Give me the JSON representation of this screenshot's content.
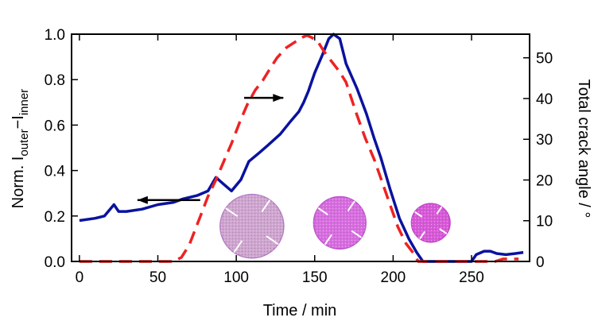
{
  "chart_data": {
    "type": "line",
    "title": "",
    "xlabel": "Time / min",
    "ylabel_left": {
      "text": "Norm. I",
      "sub1": "outer",
      "mid": "−I",
      "sub2": "inner"
    },
    "ylabel_right": "Total crack angle / °",
    "xlim": [
      -5,
      287
    ],
    "ylim_left": [
      0,
      1.0
    ],
    "ylim_right": [
      0,
      55.8
    ],
    "x_ticks": [
      0,
      50,
      100,
      150,
      200,
      250
    ],
    "y_ticks_left": [
      "0.0",
      "0.2",
      "0.4",
      "0.6",
      "0.8",
      "1.0"
    ],
    "y_ticks_right": [
      0,
      10,
      20,
      30,
      40,
      50
    ],
    "grid": false,
    "series": [
      {
        "axis": "left",
        "color": "#0a129e",
        "dash": "solid",
        "points": [
          [
            0,
            0.18
          ],
          [
            10,
            0.19
          ],
          [
            16,
            0.2
          ],
          [
            22,
            0.25
          ],
          [
            25,
            0.22
          ],
          [
            30,
            0.22
          ],
          [
            40,
            0.23
          ],
          [
            50,
            0.25
          ],
          [
            60,
            0.26
          ],
          [
            66,
            0.275
          ],
          [
            75,
            0.29
          ],
          [
            82,
            0.31
          ],
          [
            87,
            0.37
          ],
          [
            92,
            0.34
          ],
          [
            97,
            0.31
          ],
          [
            103,
            0.36
          ],
          [
            108,
            0.44
          ],
          [
            115,
            0.48
          ],
          [
            120,
            0.51
          ],
          [
            128,
            0.56
          ],
          [
            135,
            0.62
          ],
          [
            140,
            0.66
          ],
          [
            143,
            0.7
          ],
          [
            146,
            0.75
          ],
          [
            150,
            0.83
          ],
          [
            155,
            0.91
          ],
          [
            159,
            0.98
          ],
          [
            162,
            1.0
          ],
          [
            166,
            0.98
          ],
          [
            170,
            0.87
          ],
          [
            177,
            0.76
          ],
          [
            183,
            0.65
          ],
          [
            188,
            0.54
          ],
          [
            192,
            0.46
          ],
          [
            198,
            0.32
          ],
          [
            204,
            0.19
          ],
          [
            210,
            0.1
          ],
          [
            215,
            0.04
          ],
          [
            219,
            0.0
          ],
          [
            250,
            0.0
          ],
          [
            253,
            0.03
          ],
          [
            258,
            0.045
          ],
          [
            262,
            0.045
          ],
          [
            266,
            0.035
          ],
          [
            272,
            0.03
          ],
          [
            278,
            0.035
          ],
          [
            283,
            0.04
          ]
        ]
      },
      {
        "axis": "right",
        "color": "#ee2222",
        "dash": "dashed",
        "points": [
          [
            0,
            0
          ],
          [
            60,
            0
          ],
          [
            65,
            1
          ],
          [
            70,
            4
          ],
          [
            77,
            11
          ],
          [
            82,
            16
          ],
          [
            87,
            20
          ],
          [
            92,
            24.5
          ],
          [
            97,
            29
          ],
          [
            102,
            34
          ],
          [
            107,
            38.5
          ],
          [
            112,
            42
          ],
          [
            117,
            44.5
          ],
          [
            121,
            47
          ],
          [
            126,
            50
          ],
          [
            132,
            52.5
          ],
          [
            138,
            54
          ],
          [
            142,
            55
          ],
          [
            145,
            55.5
          ],
          [
            148,
            55
          ],
          [
            152,
            54
          ],
          [
            156,
            51.5
          ],
          [
            161,
            49
          ],
          [
            166,
            46.5
          ],
          [
            170,
            44
          ],
          [
            176,
            37
          ],
          [
            182,
            30.5
          ],
          [
            188,
            25
          ],
          [
            193,
            19.5
          ],
          [
            198,
            14
          ],
          [
            203,
            8.5
          ],
          [
            208,
            4.5
          ],
          [
            213,
            2
          ],
          [
            216,
            0
          ],
          [
            265,
            0
          ],
          [
            270,
            0.6
          ],
          [
            280,
            0.6
          ]
        ]
      }
    ],
    "annotations": [
      {
        "kind": "arrow",
        "from": [
          77,
          0.27
        ],
        "to": [
          37,
          0.27
        ],
        "axis": "left"
      },
      {
        "kind": "arrow",
        "from": [
          105,
          0.72
        ],
        "to": [
          130,
          0.72
        ],
        "axis": "left"
      }
    ],
    "inset_images": [
      {
        "name": "sample-disc-large",
        "x": 110,
        "y": 0.155,
        "r": 0.14,
        "color": "#cfa6cf",
        "edge": "#b680c6"
      },
      {
        "name": "sample-disc-medium",
        "x": 166,
        "y": 0.17,
        "r": 0.115,
        "color": "#d86ee0",
        "edge": "#c055cc"
      },
      {
        "name": "sample-disc-small",
        "x": 224,
        "y": 0.17,
        "r": 0.085,
        "color": "#d85ad8",
        "edge": "#c247cc"
      }
    ]
  }
}
